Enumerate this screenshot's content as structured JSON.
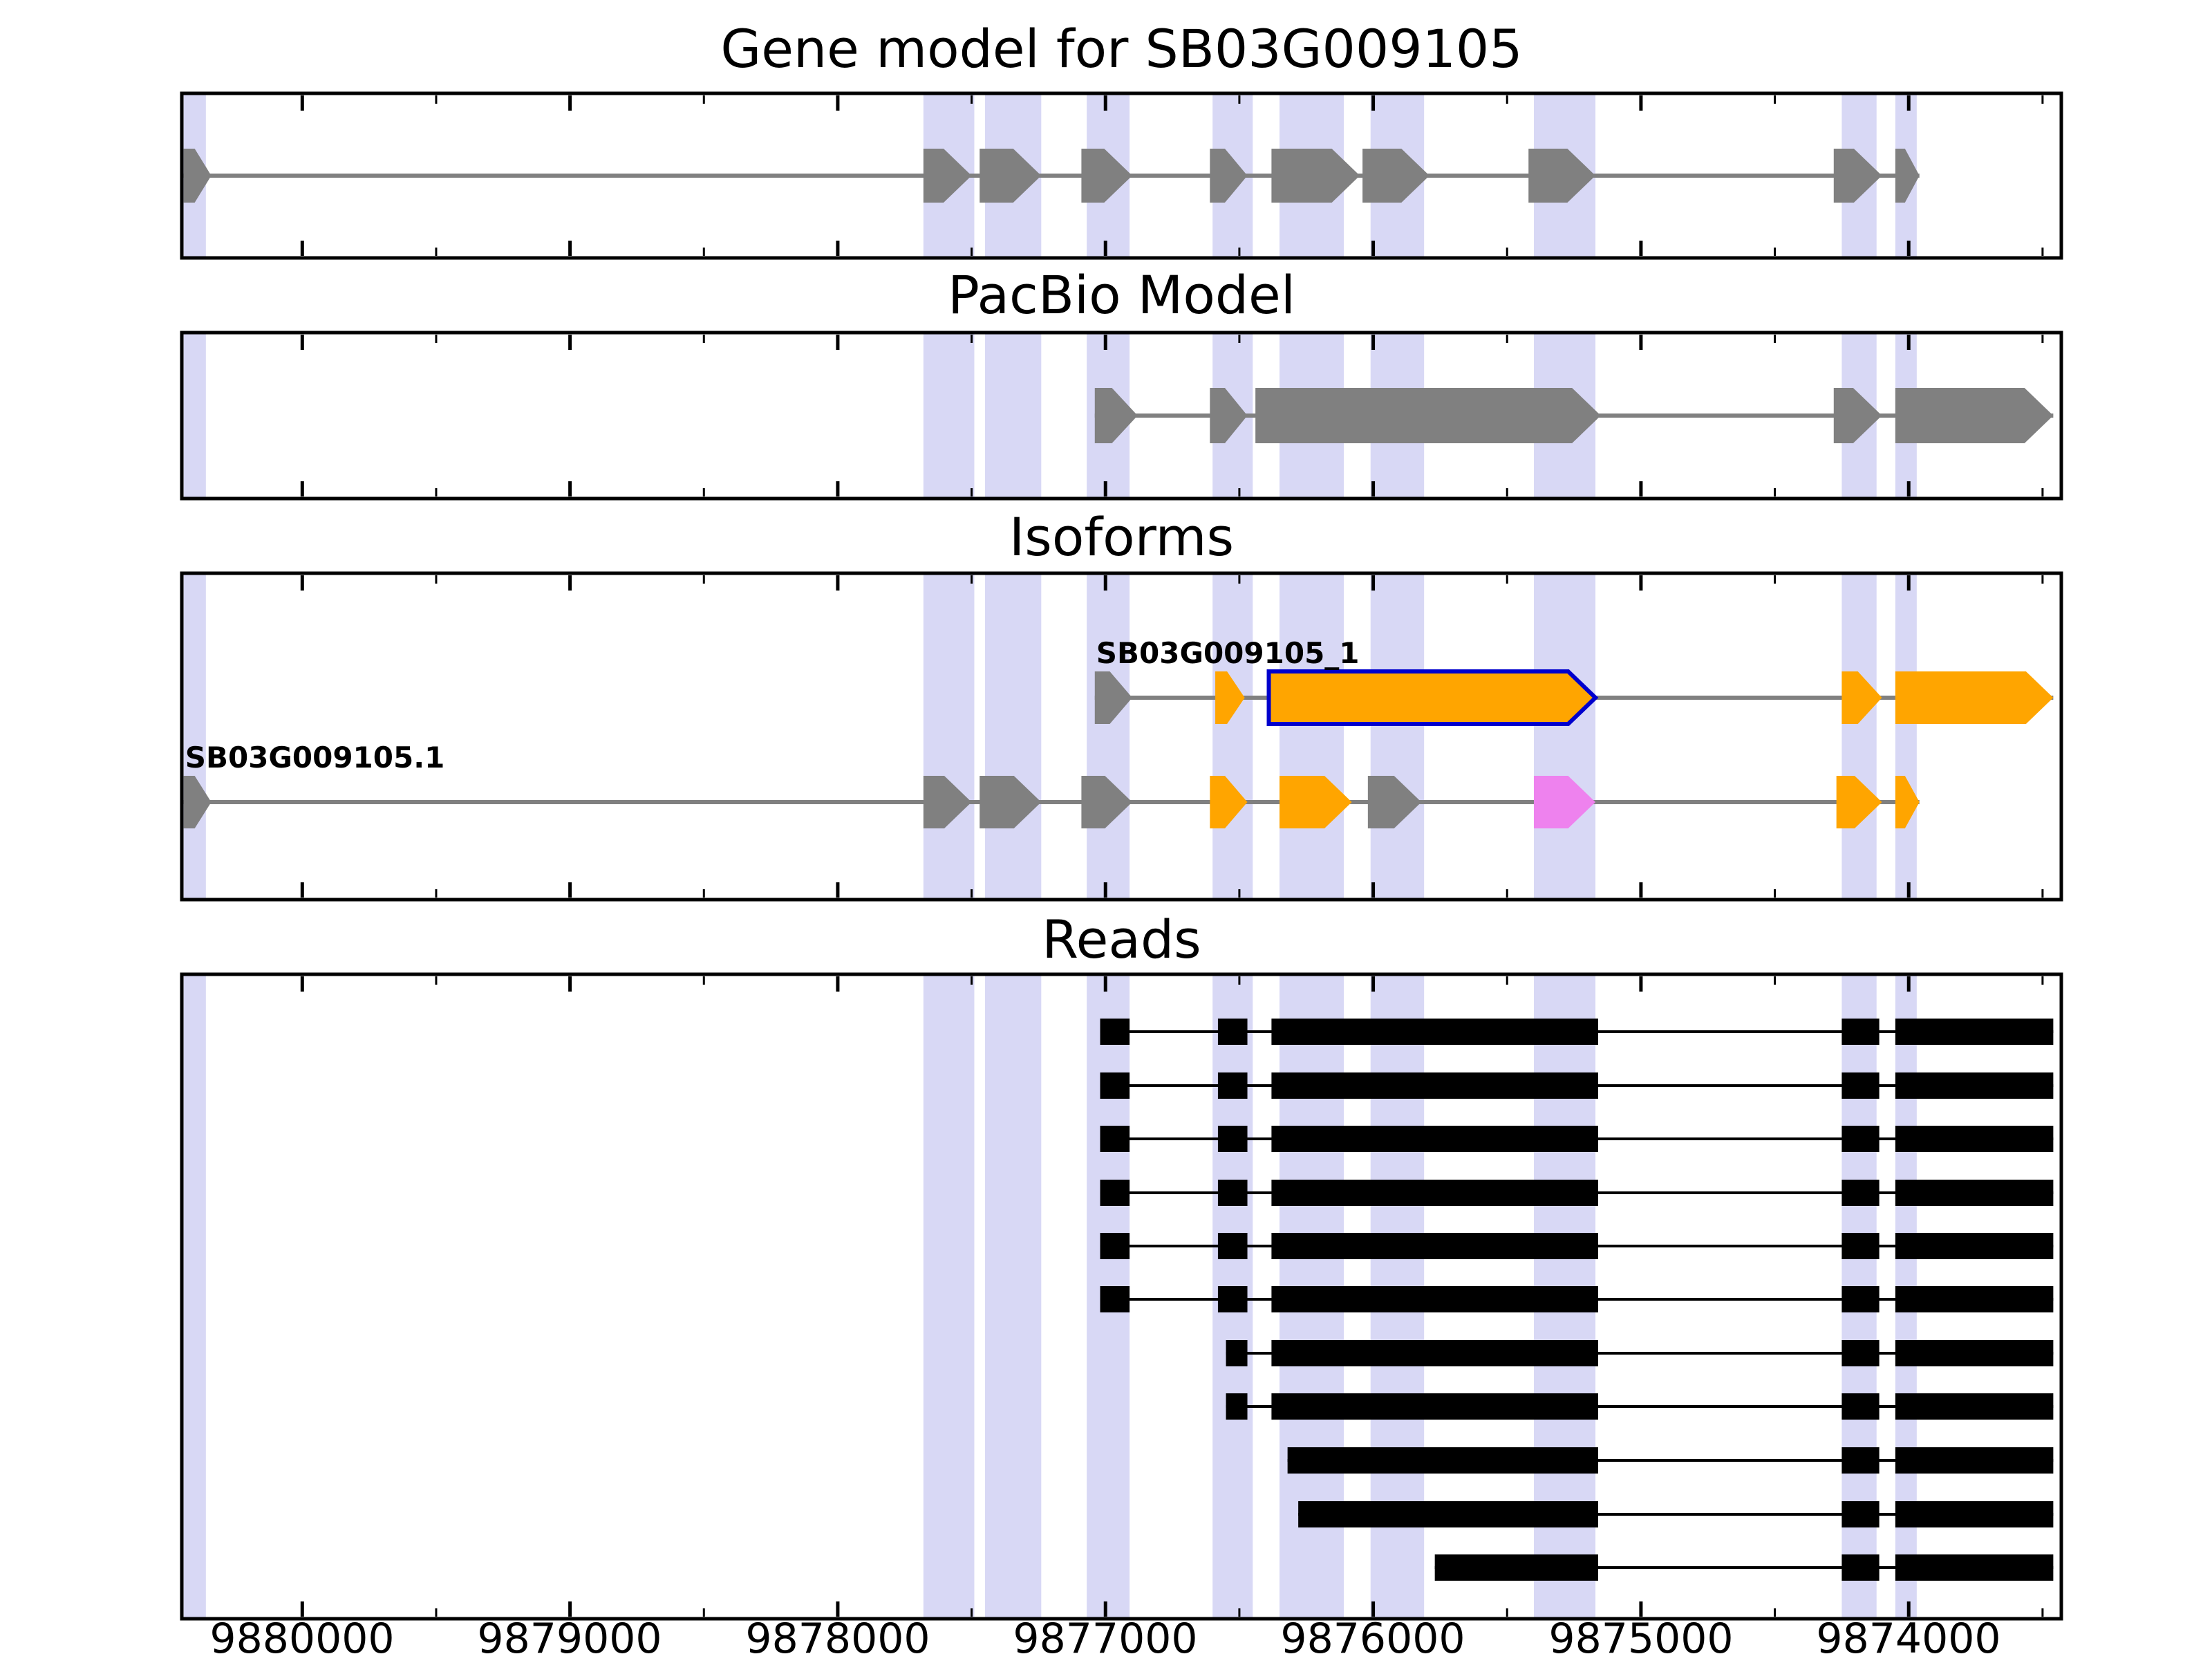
{
  "colors": {
    "exon_gray": "#808080",
    "exon_orange": "#FFA500",
    "exon_violet": "#EE82EE",
    "selected_isoform_outline": "#0000CD",
    "reads_black": "#000000",
    "highlight_stripe": "#d8d8f5",
    "intron_line_gray": "#808080"
  },
  "chart_data": {
    "type": "gene-structure-tracks",
    "xlim": [
      9880450,
      9873430
    ],
    "axis": {
      "tick_labels": [
        "9880000",
        "9879000",
        "9878000",
        "9877000",
        "9876000",
        "9875000",
        "9874000"
      ],
      "tick_values": [
        9880000,
        9879000,
        9878000,
        9877000,
        9876000,
        9875000,
        9874000
      ],
      "minor_tick_values": [
        9879500,
        9878500,
        9877500,
        9876500,
        9875500,
        9874500,
        9873500
      ]
    },
    "highlight_color": "#d8d8f5",
    "highlights": [
      [
        9880443,
        9880360
      ],
      [
        9877680,
        9877490
      ],
      [
        9877450,
        9877240
      ],
      [
        9877070,
        9876910
      ],
      [
        9876600,
        9876450
      ],
      [
        9876350,
        9876110
      ],
      [
        9876010,
        9875810
      ],
      [
        9875400,
        9875170
      ],
      [
        9874250,
        9874120
      ],
      [
        9874050,
        9873970
      ]
    ],
    "panels": [
      {
        "title": "Gene model for SB03G009105",
        "arrows": true,
        "rows": [
          {
            "color": "#808080",
            "line_color": "#808080",
            "features": [
              {
                "s": 9880443,
                "e": 9880340
              },
              {
                "s": 9877680,
                "e": 9877500
              },
              {
                "s": 9877470,
                "e": 9877240
              },
              {
                "s": 9877090,
                "e": 9876900
              },
              {
                "s": 9876610,
                "e": 9876470
              },
              {
                "s": 9876380,
                "e": 9876050
              },
              {
                "s": 9876040,
                "e": 9875790
              },
              {
                "s": 9875420,
                "e": 9875170
              },
              {
                "s": 9874280,
                "e": 9874100
              },
              {
                "s": 9874050,
                "e": 9873960
              }
            ]
          }
        ]
      },
      {
        "title": "PacBio Model",
        "arrows": true,
        "rows": [
          {
            "color": "#808080",
            "line_color": "#808080",
            "features": [
              {
                "s": 9877040,
                "e": 9876880
              },
              {
                "s": 9876610,
                "e": 9876470
              },
              {
                "s": 9876440,
                "e": 9875150
              },
              {
                "s": 9874280,
                "e": 9874100
              },
              {
                "s": 9874050,
                "e": 9873460
              }
            ]
          }
        ]
      },
      {
        "title": "Isoforms",
        "arrows": true,
        "rows": [
          {
            "label": "SB03G009105_1",
            "line_color": "#808080",
            "features": [
              {
                "s": 9877040,
                "e": 9876900,
                "c": "#808080"
              },
              {
                "s": 9876590,
                "e": 9876480,
                "c": "#FFA500"
              },
              {
                "s": 9876390,
                "e": 9875170,
                "c": "#FFA500",
                "outline": "#0000CD"
              },
              {
                "s": 9874250,
                "e": 9874100,
                "c": "#FFA500"
              },
              {
                "s": 9874050,
                "e": 9873460,
                "c": "#FFA500"
              }
            ]
          },
          {
            "label": "SB03G009105.1",
            "line_color": "#808080",
            "features": [
              {
                "s": 9880443,
                "e": 9880340,
                "c": "#808080"
              },
              {
                "s": 9877680,
                "e": 9877500,
                "c": "#808080"
              },
              {
                "s": 9877470,
                "e": 9877240,
                "c": "#808080"
              },
              {
                "s": 9877090,
                "e": 9876900,
                "c": "#808080"
              },
              {
                "s": 9876610,
                "e": 9876470,
                "c": "#FFA500"
              },
              {
                "s": 9876350,
                "e": 9876080,
                "c": "#FFA500"
              },
              {
                "s": 9876020,
                "e": 9875820,
                "c": "#808080"
              },
              {
                "s": 9875400,
                "e": 9875170,
                "c": "#EE82EE"
              },
              {
                "s": 9874270,
                "e": 9874100,
                "c": "#FFA500"
              },
              {
                "s": 9874050,
                "e": 9873960,
                "c": "#FFA500"
              }
            ]
          }
        ]
      },
      {
        "title": "Reads",
        "arrows": false,
        "rows": [
          {
            "color": "#000000",
            "line_color": "#000000",
            "features": [
              {
                "s": 9877020,
                "e": 9876910
              },
              {
                "s": 9876580,
                "e": 9876470
              },
              {
                "s": 9876380,
                "e": 9875160
              },
              {
                "s": 9874250,
                "e": 9874110
              },
              {
                "s": 9874050,
                "e": 9873460
              }
            ]
          },
          {
            "color": "#000000",
            "line_color": "#000000",
            "features": [
              {
                "s": 9877020,
                "e": 9876910
              },
              {
                "s": 9876580,
                "e": 9876470
              },
              {
                "s": 9876380,
                "e": 9875160
              },
              {
                "s": 9874250,
                "e": 9874110
              },
              {
                "s": 9874050,
                "e": 9873460
              }
            ]
          },
          {
            "color": "#000000",
            "line_color": "#000000",
            "features": [
              {
                "s": 9877020,
                "e": 9876910
              },
              {
                "s": 9876580,
                "e": 9876470
              },
              {
                "s": 9876380,
                "e": 9875160
              },
              {
                "s": 9874250,
                "e": 9874110
              },
              {
                "s": 9874050,
                "e": 9873460
              }
            ]
          },
          {
            "color": "#000000",
            "line_color": "#000000",
            "features": [
              {
                "s": 9877020,
                "e": 9876910
              },
              {
                "s": 9876580,
                "e": 9876470
              },
              {
                "s": 9876380,
                "e": 9875160
              },
              {
                "s": 9874250,
                "e": 9874110
              },
              {
                "s": 9874050,
                "e": 9873460
              }
            ]
          },
          {
            "color": "#000000",
            "line_color": "#000000",
            "features": [
              {
                "s": 9877020,
                "e": 9876910
              },
              {
                "s": 9876580,
                "e": 9876470
              },
              {
                "s": 9876380,
                "e": 9875160
              },
              {
                "s": 9874250,
                "e": 9874110
              },
              {
                "s": 9874050,
                "e": 9873460
              }
            ]
          },
          {
            "color": "#000000",
            "line_color": "#000000",
            "features": [
              {
                "s": 9877020,
                "e": 9876910
              },
              {
                "s": 9876580,
                "e": 9876470
              },
              {
                "s": 9876380,
                "e": 9875160
              },
              {
                "s": 9874250,
                "e": 9874110
              },
              {
                "s": 9874050,
                "e": 9873460
              }
            ]
          },
          {
            "color": "#000000",
            "line_color": "#000000",
            "features": [
              {
                "s": 9876550,
                "e": 9876470
              },
              {
                "s": 9876380,
                "e": 9875160
              },
              {
                "s": 9874250,
                "e": 9874110
              },
              {
                "s": 9874050,
                "e": 9873460
              }
            ]
          },
          {
            "color": "#000000",
            "line_color": "#000000",
            "features": [
              {
                "s": 9876550,
                "e": 9876470
              },
              {
                "s": 9876380,
                "e": 9875160
              },
              {
                "s": 9874250,
                "e": 9874110
              },
              {
                "s": 9874050,
                "e": 9873460
              }
            ]
          },
          {
            "color": "#000000",
            "line_color": "#000000",
            "features": [
              {
                "s": 9876320,
                "e": 9875160
              },
              {
                "s": 9874250,
                "e": 9874110
              },
              {
                "s": 9874050,
                "e": 9873460
              }
            ]
          },
          {
            "color": "#000000",
            "line_color": "#000000",
            "features": [
              {
                "s": 9876280,
                "e": 9875160
              },
              {
                "s": 9874250,
                "e": 9874110
              },
              {
                "s": 9874050,
                "e": 9873460
              }
            ]
          },
          {
            "color": "#000000",
            "line_color": "#000000",
            "features": [
              {
                "s": 9875770,
                "e": 9875160
              },
              {
                "s": 9874250,
                "e": 9874110
              },
              {
                "s": 9874050,
                "e": 9873460
              }
            ]
          }
        ]
      }
    ]
  }
}
